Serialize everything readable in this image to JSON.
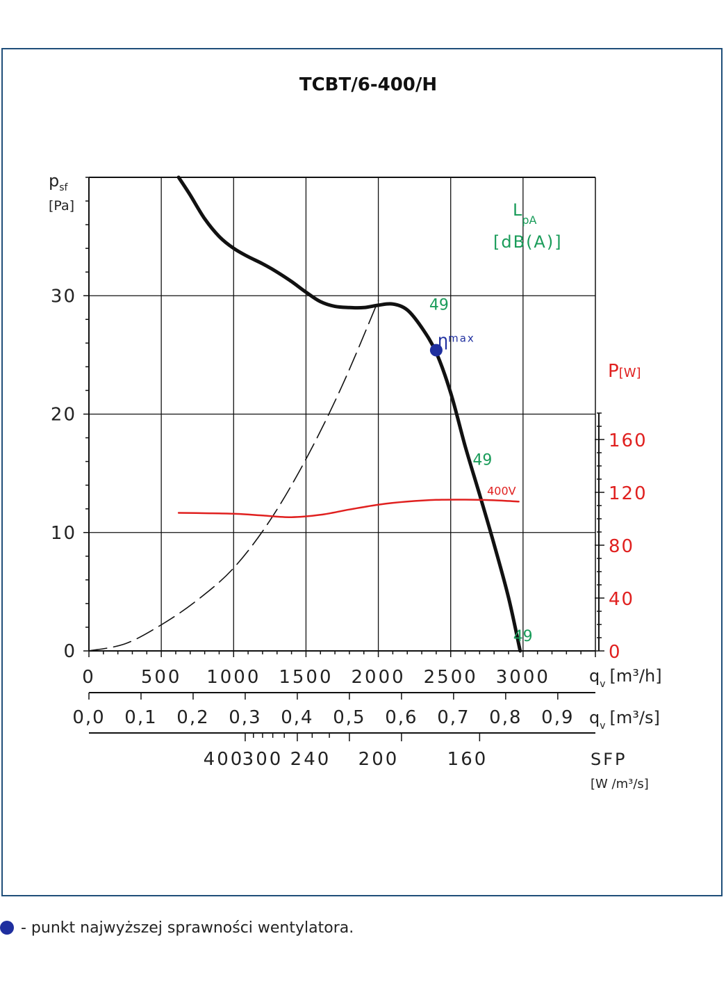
{
  "chart_data": {
    "type": "line",
    "title": "TCBT/6-400/H",
    "xlabel": "q",
    "xlabel_sub": "v",
    "xunit": "[m³/h]",
    "x_secondary_label": "q",
    "x_secondary_sub": "v",
    "x_secondary_unit": "[m³/s]",
    "ylabel": "p",
    "ylabel_sub": "sf",
    "yunit": "[Pa]",
    "y2label": "P",
    "y2unit": "[W]",
    "lpa_label": "L",
    "lpa_sub": "pA",
    "lpa_unit": "[dB(A)]",
    "sfp_label": "SFP",
    "sfp_unit": "[W /m³/s]",
    "xlim": [
      0,
      3500
    ],
    "ylim": [
      0,
      40
    ],
    "y2lim": [
      0,
      180
    ],
    "x_ticks": [
      "0",
      "500",
      "1000",
      "1500",
      "2000",
      "2500",
      "3000"
    ],
    "x_tick_values": [
      0,
      500,
      1000,
      1500,
      2000,
      2500,
      3000
    ],
    "x2_ticks": [
      "0,0",
      "0,1",
      "0,2",
      "0,3",
      "0,4",
      "0,5",
      "0,6",
      "0,7",
      "0,8",
      "0,9"
    ],
    "x2_tick_values": [
      0.0,
      0.1,
      0.2,
      0.3,
      0.4,
      0.5,
      0.6,
      0.7,
      0.8,
      0.9
    ],
    "y_ticks": [
      "0",
      "10",
      "20",
      "30"
    ],
    "y_tick_values": [
      0,
      10,
      20,
      30
    ],
    "y2_ticks": [
      "0",
      "40",
      "80",
      "120",
      "160"
    ],
    "y2_tick_values": [
      0,
      40,
      80,
      120,
      160
    ],
    "sfp_ticks": [
      "400",
      "300",
      "240",
      "200",
      "160"
    ],
    "sfp_tick_values": [
      400,
      300,
      240,
      200,
      160
    ],
    "grid": true,
    "series": [
      {
        "name": "",
        "axis": "y",
        "color": "#111111",
        "style": "solid",
        "x": [
          620,
          700,
          800,
          900,
          1000,
          1100,
          1200,
          1300,
          1400,
          1500,
          1600,
          1700,
          1800,
          1900,
          2000,
          2100,
          2200,
          2300,
          2400,
          2500,
          2600,
          2700,
          2800,
          2900,
          2980
        ],
        "y": [
          40.0,
          38.5,
          36.5,
          35.0,
          34.0,
          33.3,
          32.7,
          32.0,
          31.2,
          30.3,
          29.5,
          29.1,
          29.0,
          29.0,
          29.2,
          29.3,
          28.8,
          27.3,
          25.2,
          21.8,
          17.3,
          13.2,
          9.0,
          4.5,
          0.0
        ]
      },
      {
        "name": "",
        "axis": "y",
        "color": "#111111",
        "style": "dashed",
        "x": [
          0,
          250,
          500,
          750,
          1000,
          1250,
          1500,
          1750,
          2000
        ],
        "y": [
          0,
          0.6,
          2.2,
          4.3,
          7.0,
          11.0,
          16.2,
          22.4,
          29.6
        ]
      },
      {
        "name": "400V",
        "axis": "y2",
        "color": "#e0201f",
        "style": "solid",
        "x": [
          620,
          800,
          1000,
          1200,
          1400,
          1600,
          1800,
          2000,
          2200,
          2400,
          2600,
          2800,
          2970
        ],
        "y": [
          104.5,
          104.2,
          103.8,
          102.5,
          101.2,
          103.0,
          107.0,
          110.7,
          113.0,
          114.3,
          114.5,
          114.0,
          113.0
        ]
      }
    ],
    "efficiency_point": {
      "x": 2400,
      "y": 25.4,
      "label": "η",
      "label_sub": "max",
      "color": "#1f2f9f"
    },
    "lpa_values": [
      {
        "x": 2400,
        "y": 28.7,
        "value": "49"
      },
      {
        "x": 2700,
        "y": 15.6,
        "value": "49"
      },
      {
        "x": 2980,
        "y": 0.7,
        "value": "49"
      }
    ],
    "series_labels": [
      {
        "series": 2,
        "text": "400V"
      }
    ],
    "colors": {
      "frame": "#1f4e79",
      "lpa": "#1a9c5a",
      "power": "#e0201f",
      "eta": "#1f2f9f"
    }
  },
  "legend_note": "- punkt najwyższej sprawności wentylatora."
}
